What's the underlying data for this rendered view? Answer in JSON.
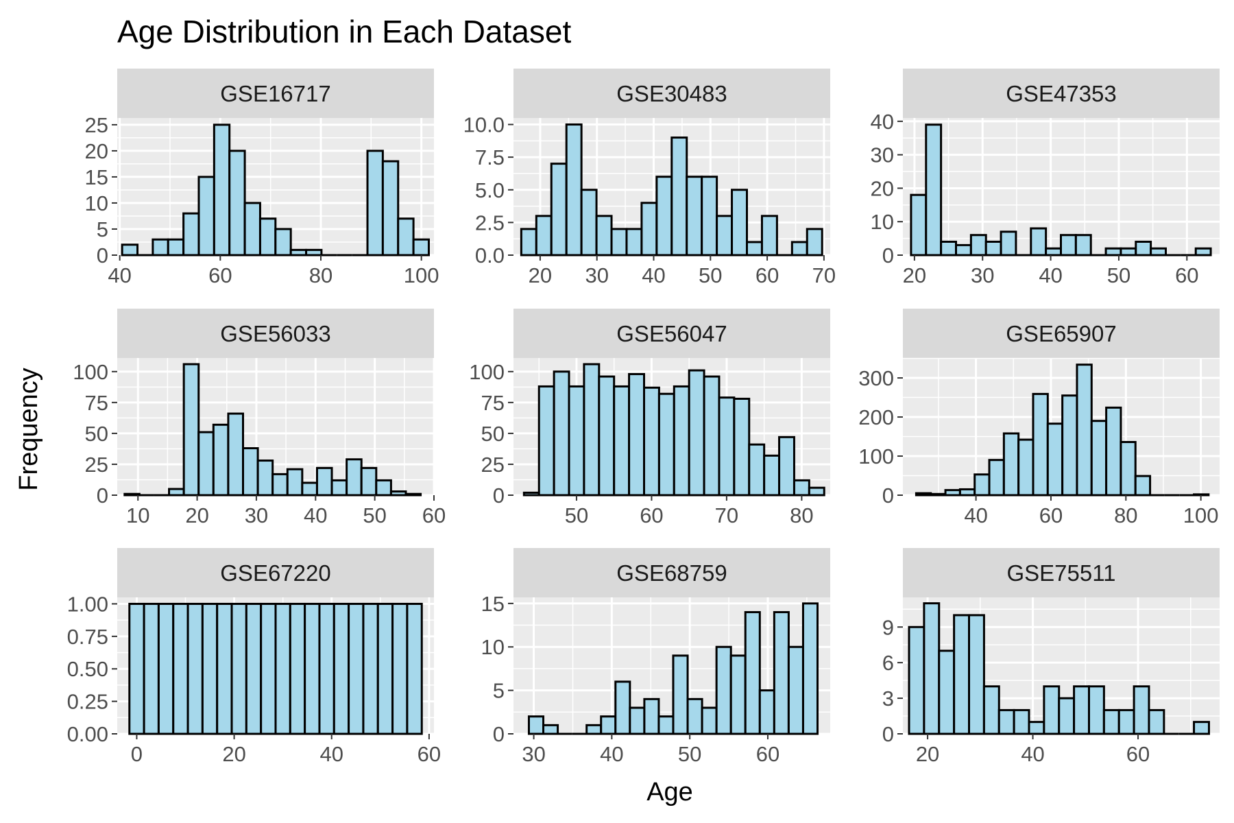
{
  "title": "Age Distribution in Each Dataset",
  "xlabel": "Age",
  "ylabel": "Frequency",
  "colors": {
    "panel_background": "#ebebeb",
    "strip_background": "#d9d9d9",
    "grid": "#ffffff",
    "bar_fill": "#a6d8eb",
    "bar_stroke": "#000000",
    "axis_text": "#4d4d4d",
    "title_text": "#000000"
  },
  "chart_data": [
    {
      "type": "bar",
      "title": "GSE16717",
      "bin_width": 3.05,
      "x": [
        42.0,
        45.05,
        48.1,
        51.15,
        54.2,
        57.25,
        60.3,
        63.35,
        66.4,
        69.45,
        72.5,
        75.55,
        78.6,
        81.65,
        84.7,
        87.75,
        90.8,
        93.85,
        96.9,
        99.95
      ],
      "values": [
        2,
        0,
        3,
        3,
        8,
        15,
        25,
        20,
        10,
        7,
        5,
        1,
        1,
        0,
        0,
        0,
        20,
        18,
        7,
        3
      ],
      "xlim": [
        39.5,
        102.5
      ],
      "ylim": [
        0,
        26.3
      ],
      "xticks": [
        40,
        60,
        80,
        100
      ],
      "yticks": [
        0,
        5,
        10,
        15,
        20,
        25
      ],
      "ytick_labels": [
        "0",
        "5",
        "10",
        "15",
        "20",
        "25"
      ]
    },
    {
      "type": "bar",
      "title": "GSE30483",
      "bin_width": 2.65,
      "x": [
        18.0,
        20.65,
        23.3,
        25.95,
        28.6,
        31.25,
        33.9,
        36.55,
        39.2,
        41.85,
        44.5,
        47.15,
        49.8,
        52.45,
        55.1,
        57.75,
        60.4,
        63.05,
        65.7,
        68.35
      ],
      "values": [
        2,
        3,
        7,
        10,
        5,
        3,
        2,
        2,
        4,
        6,
        9,
        6,
        6,
        3,
        5,
        1,
        3,
        0,
        1,
        2
      ],
      "xlim": [
        15.3,
        71.1
      ],
      "ylim": [
        0,
        10.5
      ],
      "xticks": [
        20,
        30,
        40,
        50,
        60,
        70
      ],
      "yticks": [
        0,
        2.5,
        5,
        7.5,
        10
      ],
      "ytick_labels": [
        "0.0",
        "2.5",
        "5.0",
        "7.5",
        "10.0"
      ]
    },
    {
      "type": "bar",
      "title": "GSE47353",
      "bin_width": 2.2,
      "x": [
        20.6,
        22.8,
        25.0,
        27.2,
        29.4,
        31.6,
        33.8,
        36.0,
        38.2,
        40.4,
        42.6,
        44.8,
        47.0,
        49.2,
        51.4,
        53.6,
        55.8,
        58.0,
        60.2,
        62.4
      ],
      "values": [
        18,
        39,
        4,
        3,
        6,
        4,
        7,
        0,
        8,
        2,
        6,
        6,
        0,
        2,
        2,
        4,
        2,
        0,
        0,
        2
      ],
      "xlim": [
        18.3,
        64.8
      ],
      "ylim": [
        0,
        41
      ],
      "xticks": [
        20,
        30,
        40,
        50,
        60
      ],
      "yticks": [
        0,
        10,
        20,
        30,
        40
      ],
      "ytick_labels": [
        "0",
        "10",
        "20",
        "30",
        "40"
      ]
    },
    {
      "type": "bar",
      "title": "GSE56033",
      "bin_width": 2.5,
      "x": [
        9.0,
        11.5,
        14.0,
        16.5,
        19.0,
        21.5,
        24.0,
        26.5,
        29.0,
        31.5,
        34.0,
        36.5,
        39.0,
        41.5,
        44.0,
        46.5,
        49.0,
        51.5,
        54.0,
        56.5
      ],
      "values": [
        1,
        0,
        0,
        5,
        106,
        51,
        57,
        66,
        38,
        28,
        17,
        21,
        10,
        22,
        12,
        29,
        22,
        12,
        3,
        1
      ],
      "xlim": [
        6.5,
        60.0
      ],
      "ylim": [
        0,
        111
      ],
      "xticks": [
        10,
        20,
        30,
        40,
        50,
        60
      ],
      "yticks": [
        0,
        25,
        50,
        75,
        100
      ],
      "ytick_labels": [
        "0",
        "25",
        "50",
        "75",
        "100"
      ]
    },
    {
      "type": "bar",
      "title": "GSE56047",
      "bin_width": 2.0,
      "x": [
        44.0,
        46.0,
        48.0,
        50.0,
        52.0,
        54.0,
        56.0,
        58.0,
        60.0,
        62.0,
        64.0,
        66.0,
        68.0,
        70.0,
        72.0,
        74.0,
        76.0,
        78.0,
        80.0,
        82.0
      ],
      "values": [
        2,
        88,
        100,
        88,
        106,
        96,
        88,
        98,
        87,
        82,
        88,
        101,
        96,
        79,
        78,
        41,
        32,
        47,
        12,
        6
      ],
      "xlim": [
        41.6,
        83.8
      ],
      "ylim": [
        0,
        111
      ],
      "xticks": [
        50,
        60,
        70,
        80
      ],
      "yticks": [
        0,
        25,
        50,
        75,
        100
      ],
      "ytick_labels": [
        "0",
        "25",
        "50",
        "75",
        "100"
      ]
    },
    {
      "type": "bar",
      "title": "GSE65907",
      "bin_width": 3.9,
      "x": [
        26.0,
        29.9,
        33.8,
        37.7,
        41.6,
        45.5,
        49.4,
        53.3,
        57.2,
        61.1,
        65.0,
        68.9,
        72.8,
        76.7,
        80.6,
        84.5,
        88.4,
        92.3,
        96.2,
        100.1
      ],
      "values": [
        5,
        3,
        13,
        15,
        53,
        90,
        158,
        142,
        259,
        183,
        255,
        334,
        190,
        224,
        136,
        49,
        0,
        0,
        0,
        2
      ],
      "xlim": [
        20.5,
        105.0
      ],
      "ylim": [
        0,
        351
      ],
      "xticks": [
        40,
        60,
        80,
        100
      ],
      "yticks": [
        0,
        100,
        200,
        300
      ],
      "ytick_labels": [
        "0",
        "100",
        "200",
        "300"
      ]
    },
    {
      "type": "bar",
      "title": "GSE67220",
      "bin_width": 3.0,
      "x": [
        0.0,
        3.0,
        6.0,
        9.0,
        12.0,
        15.0,
        18.0,
        21.0,
        24.0,
        27.0,
        30.0,
        33.0,
        36.0,
        39.0,
        42.0,
        45.0,
        48.0,
        51.0,
        54.0,
        57.0
      ],
      "values": [
        1,
        1,
        1,
        1,
        1,
        1,
        1,
        1,
        1,
        1,
        1,
        1,
        1,
        1,
        1,
        1,
        1,
        1,
        1,
        1
      ],
      "xlim": [
        -4.0,
        61.0
      ],
      "ylim": [
        0,
        1.05
      ],
      "xticks": [
        0,
        20,
        40,
        60
      ],
      "yticks": [
        0,
        0.25,
        0.5,
        0.75,
        1
      ],
      "ytick_labels": [
        "0.00",
        "0.25",
        "0.50",
        "0.75",
        "1.00"
      ]
    },
    {
      "type": "bar",
      "title": "GSE68759",
      "bin_width": 1.85,
      "x": [
        30.3,
        32.15,
        34.0,
        35.85,
        37.7,
        39.55,
        41.4,
        43.25,
        45.1,
        46.95,
        48.8,
        50.65,
        52.5,
        54.35,
        56.2,
        58.05,
        59.9,
        61.75,
        63.6,
        65.45
      ],
      "values": [
        2,
        1,
        0,
        0,
        1,
        2,
        6,
        3,
        4,
        2,
        9,
        4,
        3,
        10,
        9,
        14,
        5,
        14,
        10,
        15
      ],
      "xlim": [
        27.4,
        68.0
      ],
      "ylim": [
        0,
        15.7
      ],
      "xticks": [
        30,
        40,
        50,
        60
      ],
      "yticks": [
        0,
        5,
        10,
        15
      ],
      "ytick_labels": [
        "0",
        "5",
        "10",
        "15"
      ]
    },
    {
      "type": "bar",
      "title": "GSE75511",
      "bin_width": 2.85,
      "x": [
        17.9,
        20.75,
        23.6,
        26.45,
        29.3,
        32.15,
        35.0,
        37.85,
        40.7,
        43.55,
        46.4,
        49.25,
        52.1,
        54.95,
        57.8,
        60.65,
        63.5,
        66.35,
        69.2,
        72.05
      ],
      "values": [
        9,
        11,
        7,
        10,
        10,
        4,
        2,
        2,
        1,
        4,
        3,
        4,
        4,
        2,
        2,
        4,
        2,
        0,
        0,
        1
      ],
      "xlim": [
        15.3,
        75.5
      ],
      "ylim": [
        0,
        11.5
      ],
      "xticks": [
        20,
        40,
        60
      ],
      "yticks": [
        0,
        3,
        6,
        9
      ],
      "ytick_labels": [
        "0",
        "3",
        "6",
        "9"
      ]
    }
  ]
}
